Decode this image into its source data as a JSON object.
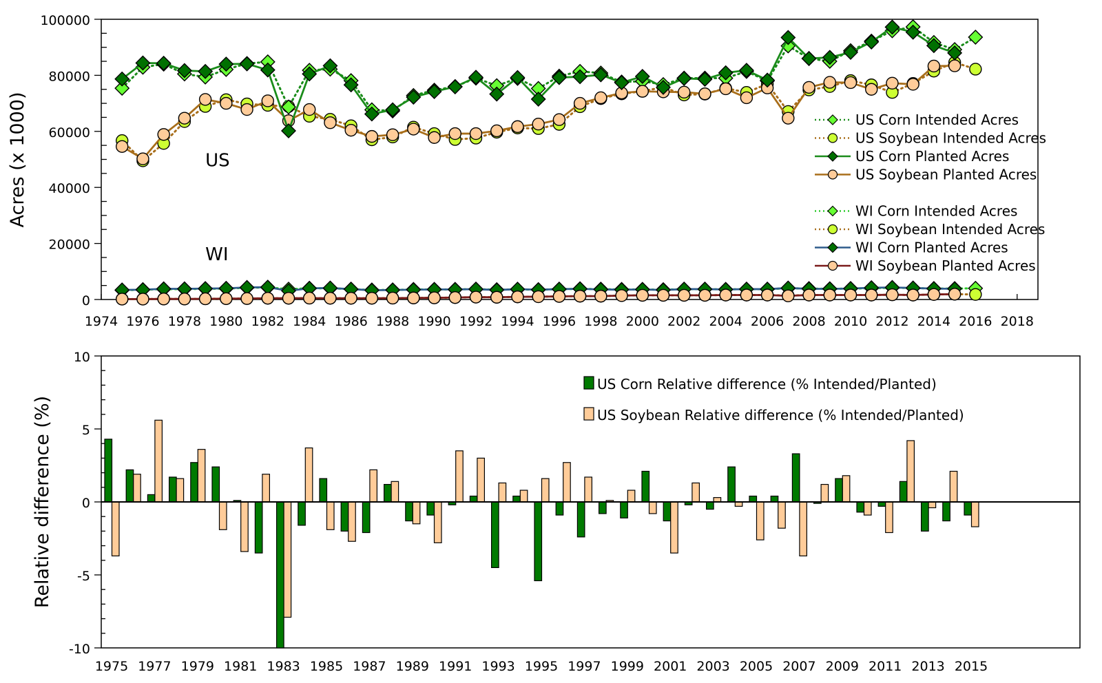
{
  "chart_data": [
    {
      "id": "acres",
      "type": "line",
      "title": "",
      "xlabel": "",
      "ylabel": "Acres (x 1000)",
      "xlim": [
        1974,
        2019
      ],
      "ylim": [
        0,
        100000
      ],
      "xticks": [
        1974,
        1976,
        1978,
        1980,
        1982,
        1984,
        1986,
        1988,
        1990,
        1992,
        1994,
        1996,
        1998,
        2000,
        2002,
        2004,
        2006,
        2008,
        2010,
        2012,
        2014,
        2016,
        2018
      ],
      "yticks": [
        0,
        20000,
        40000,
        60000,
        80000,
        100000
      ],
      "grid": false,
      "legend_position": "right",
      "annotations": [
        {
          "text": "US",
          "x": 1979,
          "y": 47500
        },
        {
          "text": "WI",
          "x": 1979,
          "y": 14000
        }
      ],
      "x": [
        1975,
        1976,
        1977,
        1978,
        1979,
        1980,
        1981,
        1982,
        1983,
        1984,
        1985,
        1986,
        1987,
        1988,
        1989,
        1990,
        1991,
        1992,
        1993,
        1994,
        1995,
        1996,
        1997,
        1998,
        1999,
        2000,
        2001,
        2002,
        2003,
        2004,
        2005,
        2006,
        2007,
        2008,
        2009,
        2010,
        2011,
        2012,
        2013,
        2014,
        2015,
        2016
      ],
      "series": [
        {
          "name": "US Corn Intended Acres",
          "line": "dotted",
          "line_color": "#1a8c1a",
          "marker": "diamond",
          "marker_color": "#66ff33",
          "values": [
            75400,
            82900,
            84000,
            80500,
            79400,
            82100,
            84200,
            84800,
            68700,
            81800,
            82200,
            78100,
            67700,
            67300,
            72800,
            74700,
            76000,
            79000,
            76300,
            78900,
            75300,
            79700,
            81400,
            80800,
            77600,
            77900,
            76700,
            79000,
            79000,
            79000,
            81400,
            78000,
            90500,
            86000,
            85000,
            88800,
            92200,
            95900,
            97300,
            91700,
            89200,
            93600
          ]
        },
        {
          "name": "US Soybean Intended Acres",
          "line": "dotted",
          "line_color": "#a86e1a",
          "marker": "circle",
          "marker_color": "#ccff33",
          "values": [
            56700,
            49500,
            55700,
            63500,
            68900,
            71300,
            69800,
            69300,
            68900,
            65400,
            64300,
            62000,
            57000,
            58000,
            61500,
            59200,
            57100,
            57600,
            59700,
            61200,
            61000,
            62500,
            68800,
            71700,
            73400,
            74300,
            75800,
            73000,
            73300,
            75400,
            73900,
            76900,
            67100,
            74800,
            76000,
            78100,
            76600,
            73900,
            77100,
            81500,
            84600,
            82200
          ]
        },
        {
          "name": "US Corn Planted Acres",
          "line": "solid",
          "line_color": "#1a8c1a",
          "marker": "diamond",
          "marker_color": "#007000",
          "values": [
            78700,
            84400,
            84300,
            81700,
            81400,
            84000,
            84100,
            81900,
            60200,
            80500,
            83400,
            76600,
            66200,
            67700,
            72200,
            74200,
            75900,
            79300,
            73300,
            79200,
            71500,
            79200,
            79500,
            80200,
            77400,
            79600,
            75700,
            78900,
            78600,
            80900,
            81800,
            78300,
            93500,
            86000,
            86400,
            88200,
            91900,
            97200,
            95400,
            90600,
            88000
          ]
        },
        {
          "name": "US Soybean Planted Acres",
          "line": "solid",
          "line_color": "#a86e1a",
          "marker": "circle",
          "marker_color": "#ffcc99",
          "values": [
            54600,
            50200,
            58900,
            64700,
            71400,
            70000,
            67800,
            70900,
            63800,
            67800,
            63100,
            60400,
            58200,
            58800,
            60800,
            57800,
            59200,
            59200,
            60200,
            61700,
            62600,
            64200,
            70000,
            72000,
            73700,
            74300,
            74100,
            74000,
            73400,
            75200,
            72000,
            75500,
            64700,
            75700,
            77500,
            77400,
            75000,
            77200,
            76800,
            83300,
            83400
          ]
        },
        {
          "name": "WI Corn Intended Acres",
          "line": "dotted",
          "line_color": "#2ecc2e",
          "marker": "diamond",
          "marker_color": "#66ff33",
          "values": [
            3300,
            3500,
            3700,
            3700,
            3800,
            3900,
            4200,
            4300,
            3700,
            4000,
            4000,
            3700,
            3400,
            3400,
            3600,
            3600,
            3600,
            3700,
            3500,
            3600,
            3500,
            3700,
            3800,
            3700,
            3600,
            3600,
            3500,
            3700,
            3700,
            3600,
            3700,
            3700,
            4000,
            3900,
            3800,
            3900,
            4000,
            4200,
            4100,
            3900,
            3900,
            4000
          ]
        },
        {
          "name": "WI Soybean Intended Acres",
          "line": "dotted",
          "line_color": "#a86e1a",
          "marker": "circle",
          "marker_color": "#ccff33",
          "values": [
            150,
            150,
            200,
            200,
            250,
            300,
            350,
            450,
            450,
            500,
            450,
            450,
            450,
            500,
            550,
            600,
            700,
            850,
            800,
            950,
            1000,
            1100,
            1200,
            1200,
            1400,
            1500,
            1500,
            1500,
            1500,
            1600,
            1600,
            1600,
            1400,
            1600,
            1600,
            1600,
            1600,
            1700,
            1600,
            1800,
            1900,
            1800
          ]
        },
        {
          "name": "WI Corn Planted Acres",
          "line": "solid",
          "line_color": "#2e5b8c",
          "marker": "diamond",
          "marker_color": "#007000",
          "values": [
            3400,
            3500,
            3800,
            3800,
            3900,
            4000,
            4300,
            4400,
            3100,
            4000,
            4100,
            3700,
            3300,
            3400,
            3500,
            3600,
            3600,
            3700,
            3400,
            3700,
            3500,
            3700,
            3800,
            3600,
            3500,
            3600,
            3400,
            3700,
            3700,
            3600,
            3700,
            3700,
            4100,
            3800,
            3800,
            3900,
            4200,
            4300,
            4100,
            3900,
            3800
          ]
        },
        {
          "name": "WI Soybean Planted Acres",
          "line": "solid",
          "line_color": "#7a1a1a",
          "marker": "circle",
          "marker_color": "#ffcc99",
          "values": [
            150,
            150,
            200,
            200,
            250,
            300,
            350,
            450,
            450,
            500,
            450,
            450,
            450,
            500,
            550,
            600,
            700,
            850,
            800,
            950,
            1000,
            1100,
            1200,
            1200,
            1400,
            1500,
            1500,
            1500,
            1500,
            1600,
            1600,
            1600,
            1300,
            1600,
            1600,
            1600,
            1600,
            1700,
            1600,
            1800,
            1900
          ]
        }
      ]
    },
    {
      "id": "relative",
      "type": "bar",
      "title": "",
      "xlabel": "",
      "ylabel": "Relative difference (%)",
      "ylim": [
        -10,
        10
      ],
      "yticks": [
        -10,
        -5,
        0,
        5,
        10
      ],
      "grid": false,
      "legend_position": "top-right",
      "categories": [
        1975,
        1976,
        1977,
        1978,
        1979,
        1980,
        1981,
        1982,
        1983,
        1984,
        1985,
        1986,
        1987,
        1988,
        1989,
        1990,
        1991,
        1992,
        1993,
        1994,
        1995,
        1996,
        1997,
        1998,
        1999,
        2000,
        2001,
        2002,
        2003,
        2004,
        2005,
        2006,
        2007,
        2008,
        2009,
        2010,
        2011,
        2012,
        2013,
        2014,
        2015,
        2016,
        2017,
        2018,
        2019,
        2020
      ],
      "xtick_labels": [
        "1975",
        "1977",
        "1979",
        "1981",
        "1983",
        "1985",
        "1987",
        "1989",
        "1991",
        "1993",
        "1995",
        "1997",
        "1999",
        "2001",
        "2003",
        "2005",
        "2007",
        "2009",
        "2011",
        "2013",
        "2015"
      ],
      "series": [
        {
          "name": "US Corn Relative difference (% Intended/Planted)",
          "color": "#007a00",
          "values": [
            4.3,
            2.2,
            0.5,
            1.7,
            2.7,
            2.4,
            0.1,
            -3.5,
            -10.0,
            -1.6,
            1.6,
            -2.0,
            -2.1,
            1.2,
            -1.3,
            -0.9,
            -0.2,
            0.4,
            -4.5,
            0.4,
            -5.4,
            -0.9,
            -2.4,
            -0.8,
            -1.1,
            2.1,
            -1.3,
            -0.2,
            -0.5,
            2.4,
            0.4,
            0.4,
            3.3,
            -0.1,
            1.6,
            -0.7,
            -0.3,
            1.4,
            -2.0,
            -1.3,
            -0.9,
            null,
            null,
            null,
            null,
            null
          ]
        },
        {
          "name": "US Soybean Relative difference (% Intended/Planted)",
          "color": "#ffcc99",
          "values": [
            -3.7,
            1.9,
            5.6,
            1.6,
            3.6,
            -1.9,
            -3.4,
            1.9,
            -7.9,
            3.7,
            -1.9,
            -2.7,
            2.2,
            1.4,
            -1.5,
            -2.8,
            3.5,
            3.0,
            1.3,
            0.8,
            1.6,
            2.7,
            1.7,
            0.1,
            0.8,
            -0.8,
            -3.5,
            1.3,
            0.3,
            -0.3,
            -2.6,
            -1.8,
            -3.7,
            1.2,
            1.8,
            -0.9,
            -2.1,
            4.2,
            -0.4,
            2.1,
            -1.7,
            null,
            null,
            null,
            null,
            null
          ]
        }
      ]
    }
  ]
}
